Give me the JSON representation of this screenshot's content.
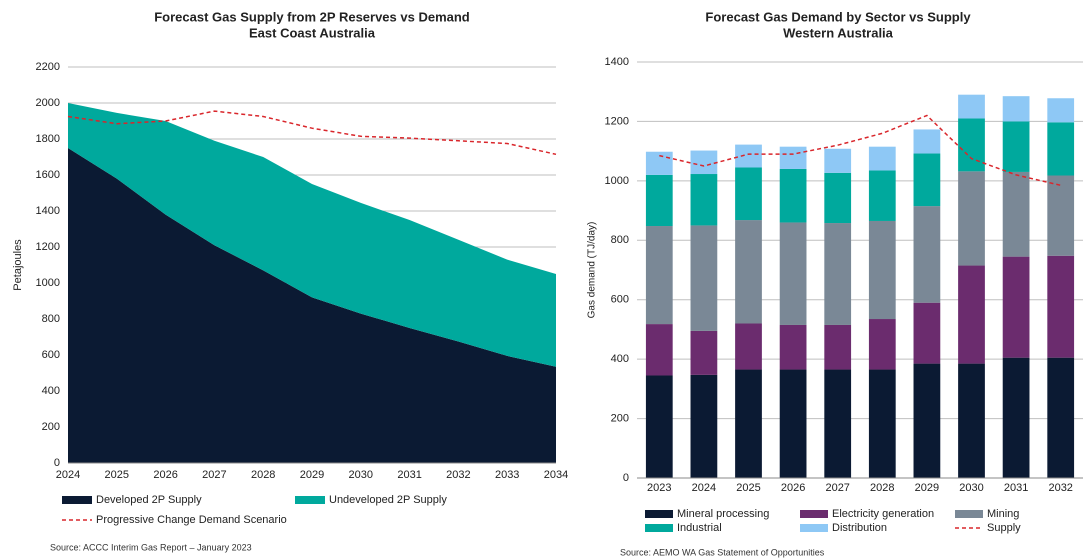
{
  "chart_data": [
    {
      "type": "area",
      "title": [
        "Forecast Gas Supply from 2P Reserves vs Demand",
        "East Coast Australia"
      ],
      "ylabel": "Petajoules",
      "categories": [
        "2024",
        "2025",
        "2026",
        "2027",
        "2028",
        "2029",
        "2030",
        "2031",
        "2032",
        "2033",
        "2034"
      ],
      "series": [
        {
          "name": "Developed 2P Supply",
          "color": "#0b1a33",
          "values": [
            1750,
            1580,
            1380,
            1210,
            1070,
            920,
            830,
            750,
            675,
            595,
            535
          ]
        },
        {
          "name": "Undeveloped 2P Supply",
          "color": "#00a99d",
          "values": [
            250,
            365,
            520,
            580,
            630,
            630,
            615,
            600,
            565,
            535,
            515
          ]
        },
        {
          "name": "Progressive Change Demand Scenario",
          "color": "#d9262b",
          "kind": "line",
          "dashed": true,
          "values": [
            1925,
            1885,
            1900,
            1955,
            1925,
            1860,
            1815,
            1805,
            1790,
            1775,
            1715
          ]
        }
      ],
      "ylim": [
        0,
        2200
      ],
      "yticks": [
        0,
        200,
        400,
        600,
        800,
        1000,
        1200,
        1400,
        1600,
        1800,
        2000,
        2200
      ],
      "grid": true,
      "source": "Source: ACCC Interim Gas Report – January 2023"
    },
    {
      "type": "bar",
      "stacked": true,
      "title": [
        "Forecast Gas Demand by Sector vs Supply",
        "Western Australia"
      ],
      "ylabel": "Gas demand (TJ/day)",
      "categories": [
        "2023",
        "2024",
        "2025",
        "2026",
        "2027",
        "2028",
        "2029",
        "2030",
        "2031",
        "2032"
      ],
      "series": [
        {
          "name": "Mineral processing",
          "color": "#0b1a33",
          "values": [
            345,
            347,
            365,
            365,
            365,
            365,
            385,
            385,
            405,
            405
          ]
        },
        {
          "name": "Electricity generation",
          "color": "#6b2c6e",
          "values": [
            173,
            148,
            155,
            150,
            150,
            170,
            205,
            330,
            340,
            343
          ]
        },
        {
          "name": "Mining",
          "color": "#7a8896",
          "values": [
            330,
            355,
            348,
            345,
            343,
            330,
            325,
            317,
            285,
            270
          ]
        },
        {
          "name": "Industrial",
          "color": "#00a99d",
          "values": [
            172,
            173,
            177,
            180,
            169,
            170,
            177,
            178,
            170,
            179
          ]
        },
        {
          "name": "Distribution",
          "color": "#8ec8f5",
          "values": [
            78,
            79,
            77,
            75,
            81,
            80,
            81,
            80,
            85,
            81
          ]
        },
        {
          "name": "Supply",
          "color": "#d9262b",
          "kind": "line",
          "dashed": true,
          "values": [
            1085,
            1050,
            1090,
            1090,
            1120,
            1160,
            1220,
            1075,
            1020,
            985
          ]
        }
      ],
      "ylim": [
        0,
        1400
      ],
      "yticks": [
        0,
        200,
        400,
        600,
        800,
        1000,
        1200,
        1400
      ],
      "grid": true,
      "source": "Source: AEMO  WA Gas Statement  of Opportunities"
    }
  ]
}
